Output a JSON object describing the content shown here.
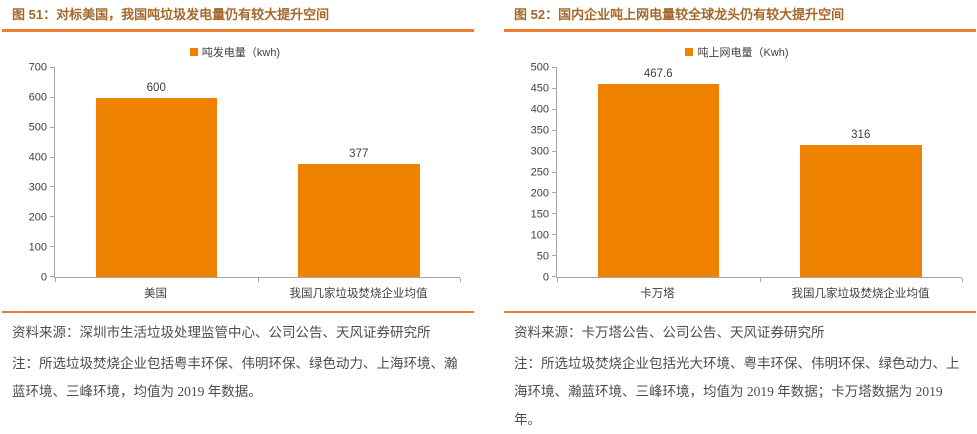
{
  "colors": {
    "bar": "#EF8200",
    "accent_line": "#ED7D31",
    "title_text": "#A5682A",
    "axis": "#A6A6A6",
    "footer_text": "#4D4D4D"
  },
  "chart_data": [
    {
      "type": "bar",
      "title": "图 51：对标美国，我国吨垃圾发电量仍有较大提升空间",
      "legend": [
        "吨发电量（kwh)"
      ],
      "legend_position": "top",
      "categories": [
        "美国",
        "我国几家垃圾焚烧企业均值"
      ],
      "values": [
        600,
        377
      ],
      "value_labels": [
        "600",
        "377"
      ],
      "ylim": [
        0,
        700
      ],
      "ytick_step": 100,
      "grid": false,
      "bar_color": "#EF8200"
    },
    {
      "type": "bar",
      "title": "图 52：国内企业吨上网电量较全球龙头仍有较大提升空间",
      "legend": [
        "吨上网电量（Kwh)"
      ],
      "legend_position": "top",
      "categories": [
        "卡万塔",
        "我国几家垃圾焚烧企业均值"
      ],
      "values": [
        467.6,
        316
      ],
      "value_labels": [
        "467.6",
        "316"
      ],
      "ylim": [
        0,
        500
      ],
      "ytick_step": 50,
      "grid": false,
      "bar_color": "#EF8200"
    }
  ],
  "panels": [
    {
      "source": "资料来源：深圳市生活垃圾处理监管中心、公司公告、天风证券研究所",
      "note": "注：所选垃圾焚烧企业包括粤丰环保、伟明环保、绿色动力、上海环境、瀚蓝环境、三峰环境，均值为 2019 年数据。"
    },
    {
      "source": "资料来源：卡万塔公告、公司公告、天风证券研究所",
      "note": "注：所选垃圾焚烧企业包括光大环境、粤丰环保、伟明环保、绿色动力、上海环境、瀚蓝环境、三峰环境，均值为 2019 年数据；卡万塔数据为 2019 年。"
    }
  ]
}
